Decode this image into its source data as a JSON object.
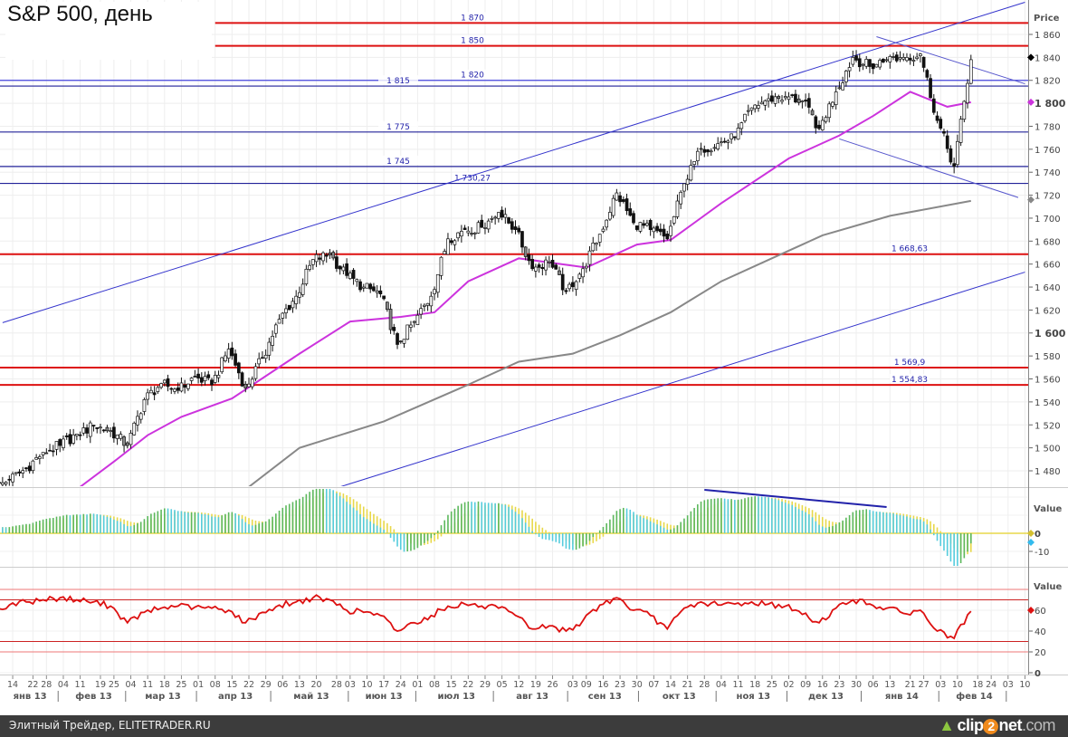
{
  "title": "S&P 500, день",
  "footer": {
    "source": "Элитный Трейдер, ELITETRADER.RU",
    "logo": {
      "a": "clip",
      "b": "2",
      "c": "net",
      "d": ".com"
    }
  },
  "chart_data": {
    "type": "candlestick",
    "title": "S&P 500, день",
    "price_axis": {
      "label": "Price",
      "ylim": [
        1466,
        1890
      ],
      "ticks": [
        "1 480",
        "1 500",
        "1 520",
        "1 540",
        "1 560",
        "1 580",
        "1 600",
        "1 620",
        "1 640",
        "1 660",
        "1 680",
        "1 700",
        "1 720",
        "1 740",
        "1 760",
        "1 780",
        "1 800",
        "1 820",
        "1 840",
        "1 860"
      ],
      "tick_values": [
        1480,
        1500,
        1520,
        1540,
        1560,
        1580,
        1600,
        1620,
        1640,
        1660,
        1680,
        1700,
        1720,
        1740,
        1760,
        1780,
        1800,
        1820,
        1840,
        1860
      ],
      "bold_ticks": [
        1600,
        1800
      ]
    },
    "weeks": [
      "2013-01-07",
      "2013-01-14",
      "2013-01-22",
      "2013-01-28",
      "2013-02-04",
      "2013-02-11",
      "2013-02-19",
      "2013-02-25",
      "2013-03-04",
      "2013-03-11",
      "2013-03-18",
      "2013-03-25",
      "2013-04-01",
      "2013-04-08",
      "2013-04-15",
      "2013-04-22",
      "2013-04-29",
      "2013-05-06",
      "2013-05-13",
      "2013-05-20",
      "2013-05-28",
      "2013-06-03",
      "2013-06-10",
      "2013-06-17",
      "2013-06-24",
      "2013-07-01",
      "2013-07-08",
      "2013-07-15",
      "2013-07-22",
      "2013-07-29",
      "2013-08-05",
      "2013-08-12",
      "2013-08-19",
      "2013-08-26",
      "2013-09-03",
      "2013-09-09",
      "2013-09-16",
      "2013-09-23",
      "2013-09-30",
      "2013-10-07",
      "2013-10-14",
      "2013-10-21",
      "2013-10-28",
      "2013-11-04",
      "2013-11-11",
      "2013-11-18",
      "2013-11-25",
      "2013-12-02",
      "2013-12-09",
      "2013-12-16",
      "2013-12-23",
      "2013-12-30",
      "2014-01-06",
      "2014-01-13",
      "2014-01-21",
      "2014-01-27",
      "2014-02-03",
      "2014-02-10"
    ],
    "weekly_close": [
      1472,
      1482,
      1496,
      1502,
      1512,
      1519,
      1515,
      1502,
      1542,
      1556,
      1550,
      1562,
      1555,
      1586,
      1552,
      1578,
      1612,
      1632,
      1664,
      1668,
      1650,
      1640,
      1634,
      1590,
      1610,
      1632,
      1682,
      1690,
      1692,
      1705,
      1690,
      1656,
      1662,
      1636,
      1656,
      1686,
      1722,
      1696,
      1690,
      1682,
      1730,
      1760,
      1765,
      1770,
      1796,
      1804,
      1806,
      1802,
      1778,
      1810,
      1840,
      1832,
      1838,
      1840,
      1843,
      1785,
      1745,
      1838
    ],
    "moving_averages": [
      {
        "color": "#cc33dd",
        "points": [
          [
            "2013-02-04",
            1458
          ],
          [
            "2013-02-11",
            1466
          ],
          [
            "2013-02-25",
            1488
          ],
          [
            "2013-03-11",
            1511
          ],
          [
            "2013-03-25",
            1527
          ],
          [
            "2013-04-15",
            1543
          ],
          [
            "2013-05-13",
            1582
          ],
          [
            "2013-06-03",
            1610
          ],
          [
            "2013-06-24",
            1614
          ],
          [
            "2013-07-08",
            1618
          ],
          [
            "2013-07-22",
            1645
          ],
          [
            "2013-08-12",
            1665
          ],
          [
            "2013-09-09",
            1657
          ],
          [
            "2013-09-30",
            1677
          ],
          [
            "2013-10-14",
            1681
          ],
          [
            "2013-11-04",
            1713
          ],
          [
            "2013-12-02",
            1752
          ],
          [
            "2013-12-23",
            1772
          ],
          [
            "2014-01-06",
            1789
          ],
          [
            "2014-01-21",
            1810
          ],
          [
            "2014-02-05",
            1797
          ],
          [
            "2014-02-14",
            1801
          ]
        ],
        "last": 1801
      },
      {
        "color": "#888888",
        "points": [
          [
            "2013-04-22",
            1466
          ],
          [
            "2013-05-13",
            1500
          ],
          [
            "2013-06-17",
            1523
          ],
          [
            "2013-07-22",
            1555
          ],
          [
            "2013-08-12",
            1575
          ],
          [
            "2013-09-03",
            1582
          ],
          [
            "2013-09-23",
            1598
          ],
          [
            "2013-10-14",
            1618
          ],
          [
            "2013-11-04",
            1645
          ],
          [
            "2013-11-25",
            1665
          ],
          [
            "2013-12-16",
            1685
          ],
          [
            "2014-01-13",
            1702
          ],
          [
            "2014-02-14",
            1715
          ]
        ],
        "last": 1716
      }
    ],
    "last_price": 1840,
    "levels": [
      {
        "value": 1870,
        "label": "1 870",
        "color": "#dd1111",
        "from": "2013-04-08"
      },
      {
        "value": 1850,
        "label": "1 850",
        "color": "#dd1111",
        "from": "2013-04-08"
      },
      {
        "value": 1820,
        "label": "1 820",
        "color": "#4444dd",
        "from": "2013-01-07"
      },
      {
        "value": 1815,
        "label": "1 815",
        "color": "#222299",
        "from": "2013-01-07"
      },
      {
        "value": 1775,
        "label": "1 775",
        "color": "#222299",
        "from": "2013-01-07"
      },
      {
        "value": 1745,
        "label": "1 745",
        "color": "#222299",
        "from": "2013-01-07"
      },
      {
        "value": 1730.27,
        "label": "1 730,27",
        "color": "#222299",
        "from": "2013-01-07"
      },
      {
        "value": 1668.63,
        "label": "1 668,63",
        "color": "#dd1111",
        "from": "2013-01-07"
      },
      {
        "value": 1569.9,
        "label": "1 569,9",
        "color": "#dd1111",
        "from": "2013-01-07"
      },
      {
        "value": 1554.83,
        "label": "1 554,83",
        "color": "#dd1111",
        "from": "2013-01-07"
      }
    ],
    "trendlines": [
      {
        "from": [
          "2013-01-09",
          1609
        ],
        "to": [
          "2014-03-10",
          1888
        ],
        "color": "#3333cc"
      },
      {
        "from": [
          "2013-05-29",
          1466
        ],
        "to": [
          "2014-03-10",
          1653
        ],
        "color": "#3333cc"
      },
      {
        "from": [
          "2014-01-07",
          1858
        ],
        "to": [
          "2014-03-10",
          1817
        ],
        "color": "#5555cc"
      },
      {
        "from": [
          "2013-12-23",
          1769
        ],
        "to": [
          "2014-03-06",
          1718
        ],
        "color": "#5555cc"
      }
    ],
    "macd": {
      "label": "Value",
      "ticks": [
        "0",
        "-10"
      ],
      "tick_values": [
        0,
        -10
      ],
      "colors": {
        "histogram": "#5cb85c",
        "signal": "#e8d84a",
        "falling": "#55ccdd"
      },
      "divergence_line": {
        "from": [
          "2013-10-28",
          24
        ],
        "to": [
          "2014-01-10",
          14.5
        ],
        "color": "#2222aa"
      }
    },
    "rsi": {
      "label": "Value",
      "ticks": [
        "60",
        "40",
        "20",
        "0"
      ],
      "tick_values": [
        60,
        40,
        20,
        0
      ],
      "levels": [
        80,
        70,
        30,
        20
      ],
      "color": "#dd1111",
      "last": 60,
      "weekly": [
        65,
        68,
        70,
        72,
        70,
        68,
        64,
        48,
        58,
        62,
        64,
        63,
        62,
        60,
        48,
        58,
        65,
        68,
        72,
        70,
        60,
        58,
        55,
        40,
        48,
        55,
        64,
        66,
        64,
        62,
        55,
        42,
        45,
        40,
        50,
        65,
        72,
        60,
        55,
        42,
        62,
        68,
        65,
        66,
        68,
        66,
        64,
        56,
        48,
        62,
        70,
        66,
        62,
        57,
        60,
        40,
        33,
        59
      ]
    },
    "x_ticks": [
      "2013-01-14",
      "2013-01-22",
      "2013-01-28",
      "2013-02-04",
      "2013-02-11",
      "2013-02-19",
      "2013-02-25",
      "2013-03-04",
      "2013-03-11",
      "2013-03-18",
      "2013-03-25",
      "2013-04-01",
      "2013-04-08",
      "2013-04-15",
      "2013-04-22",
      "2013-04-29",
      "2013-05-06",
      "2013-05-13",
      "2013-05-20",
      "2013-05-28",
      "2013-06-03",
      "2013-06-10",
      "2013-06-17",
      "2013-06-24",
      "2013-07-01",
      "2013-07-08",
      "2013-07-15",
      "2013-07-22",
      "2013-07-29",
      "2013-08-05",
      "2013-08-12",
      "2013-08-19",
      "2013-08-26",
      "2013-09-03",
      "2013-09-09",
      "2013-09-16",
      "2013-09-23",
      "2013-09-30",
      "2013-10-07",
      "2013-10-14",
      "2013-10-21",
      "2013-10-28",
      "2013-11-04",
      "2013-11-11",
      "2013-11-18",
      "2013-11-25",
      "2013-12-02",
      "2013-12-09",
      "2013-12-16",
      "2013-12-23",
      "2013-12-30",
      "2014-01-06",
      "2014-01-13",
      "2014-01-21",
      "2014-01-27",
      "2014-02-03",
      "2014-02-10",
      "2014-02-18",
      "2014-02-24",
      "2014-03-03",
      "2014-03-10"
    ],
    "months": [
      {
        "m": "2013-01",
        "label": "янв 13"
      },
      {
        "m": "2013-02",
        "label": "фев 13"
      },
      {
        "m": "2013-03",
        "label": "мар 13"
      },
      {
        "m": "2013-04",
        "label": "апр 13"
      },
      {
        "m": "2013-05",
        "label": "май 13"
      },
      {
        "m": "2013-06",
        "label": "июн 13"
      },
      {
        "m": "2013-07",
        "label": "июл 13"
      },
      {
        "m": "2013-08",
        "label": "авг 13"
      },
      {
        "m": "2013-09",
        "label": "сен 13"
      },
      {
        "m": "2013-10",
        "label": "окт 13"
      },
      {
        "m": "2013-11",
        "label": "ноя 13"
      },
      {
        "m": "2013-12",
        "label": "дек 13"
      },
      {
        "m": "2014-01",
        "label": "янв 14"
      },
      {
        "m": "2014-02",
        "label": "фев 14"
      }
    ]
  }
}
